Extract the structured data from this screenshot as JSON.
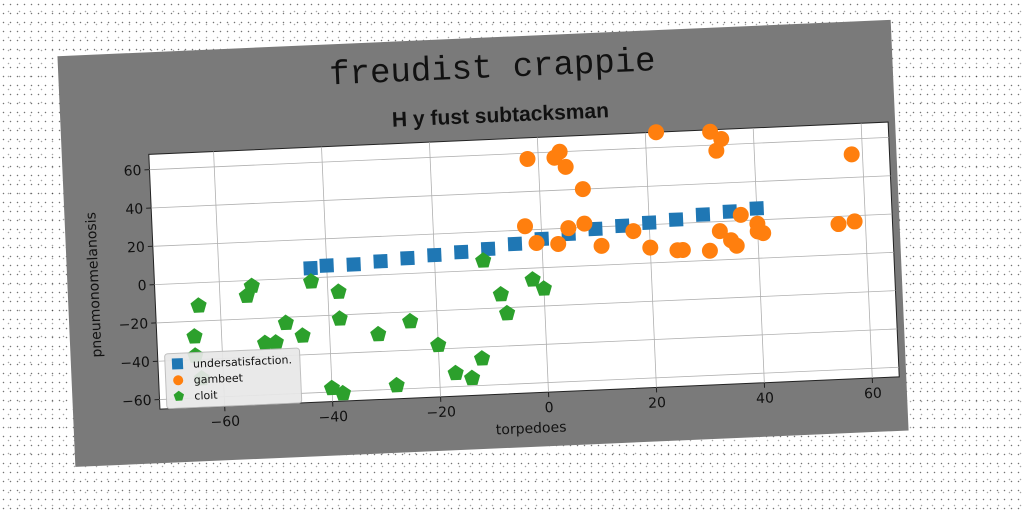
{
  "chart_data": {
    "type": "scatter",
    "title": "freudist crappie",
    "subtitle": "H y fust subtacksman",
    "xlabel": "torpedoes",
    "ylabel": "pneumonomelanosis",
    "xlim": [
      -72,
      65
    ],
    "ylim": [
      -65,
      68
    ],
    "xticks": [
      -60,
      -40,
      -20,
      0,
      20,
      40,
      60
    ],
    "yticks": [
      -60,
      -40,
      -20,
      0,
      20,
      40,
      60
    ],
    "grid": true,
    "legend_position": "lower-left",
    "series": [
      {
        "name": "undersatisfaction.",
        "marker": "square",
        "color": "#1f77b4",
        "points": [
          [
            -43,
            5
          ],
          [
            -40,
            6
          ],
          [
            -35,
            6
          ],
          [
            -30,
            7
          ],
          [
            -25,
            8
          ],
          [
            -20,
            9
          ],
          [
            -15,
            10
          ],
          [
            -10,
            11
          ],
          [
            -5,
            13
          ],
          [
            0,
            15
          ],
          [
            5,
            17
          ],
          [
            10,
            19
          ],
          [
            15,
            20
          ],
          [
            20,
            21
          ],
          [
            25,
            22
          ],
          [
            30,
            24
          ],
          [
            35,
            25
          ],
          [
            40,
            26
          ]
        ]
      },
      {
        "name": "gambeet",
        "marker": "circle",
        "color": "#ff7f0e",
        "points": [
          [
            -2,
            57
          ],
          [
            3,
            57
          ],
          [
            4,
            60
          ],
          [
            5,
            52
          ],
          [
            8,
            40
          ],
          [
            22,
            68
          ],
          [
            32,
            67
          ],
          [
            34,
            63
          ],
          [
            33,
            57
          ],
          [
            58,
            52
          ],
          [
            -3,
            22
          ],
          [
            -1,
            13
          ],
          [
            3,
            12
          ],
          [
            5,
            20
          ],
          [
            8,
            22
          ],
          [
            11,
            10
          ],
          [
            17,
            17
          ],
          [
            20,
            8
          ],
          [
            25,
            6
          ],
          [
            26,
            6
          ],
          [
            31,
            5
          ],
          [
            33,
            15
          ],
          [
            35,
            10
          ],
          [
            36,
            7
          ],
          [
            37,
            23
          ],
          [
            40,
            18
          ],
          [
            40,
            14
          ],
          [
            41,
            13
          ],
          [
            55,
            16
          ],
          [
            58,
            17
          ]
        ]
      },
      {
        "name": "cloit",
        "marker": "pentagon",
        "color": "#2ca02c",
        "points": [
          [
            -64,
            -12
          ],
          [
            -65,
            -28
          ],
          [
            -65,
            -38
          ],
          [
            -64,
            -50
          ],
          [
            -55,
            -8
          ],
          [
            -54,
            -3
          ],
          [
            -52,
            -33
          ],
          [
            -50,
            -33
          ],
          [
            -48,
            -23
          ],
          [
            -45,
            -30
          ],
          [
            -43,
            -2
          ],
          [
            -38,
            -8
          ],
          [
            -38,
            -22
          ],
          [
            -40,
            -58
          ],
          [
            -38,
            -61
          ],
          [
            -31,
            -31
          ],
          [
            -28,
            -58
          ],
          [
            -25,
            -25
          ],
          [
            -20,
            -38
          ],
          [
            -17,
            -53
          ],
          [
            -14,
            -56
          ],
          [
            -12,
            -46
          ],
          [
            -8,
            -13
          ],
          [
            -7,
            -23
          ],
          [
            -11,
            5
          ],
          [
            -2,
            -6
          ],
          [
            0,
            -11
          ]
        ]
      }
    ]
  }
}
